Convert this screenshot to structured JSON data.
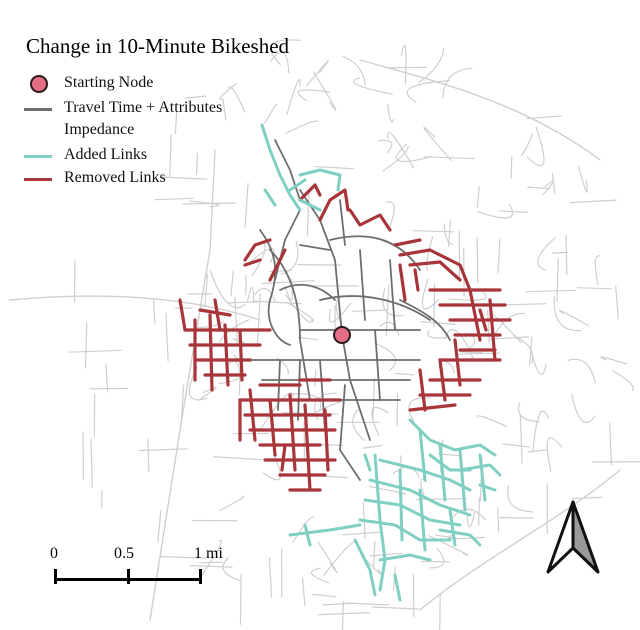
{
  "map": {
    "title": "Change in 10-Minute Bikeshed",
    "colors": {
      "background_roads": "#cfcfcf",
      "travel_time_links": "#6e6e6e",
      "added_links": "#7fcfc3",
      "removed_links": "#a8353a",
      "starting_node": "#e46e84",
      "node_outline": "#2a1a1e"
    },
    "legend": {
      "items": [
        {
          "label": "Starting Node",
          "symbol": "circle-icon"
        },
        {
          "label": "Travel Time + Attributes",
          "sublabel": "Impedance",
          "symbol": "gray-line"
        },
        {
          "label": "Added Links",
          "symbol": "teal-line"
        },
        {
          "label": "Removed Links",
          "symbol": "red-line"
        }
      ]
    },
    "scale_bar": {
      "labels": [
        "0",
        "0.5",
        "1 mi"
      ]
    },
    "north_arrow": {
      "icon": "north-arrow-icon"
    }
  }
}
